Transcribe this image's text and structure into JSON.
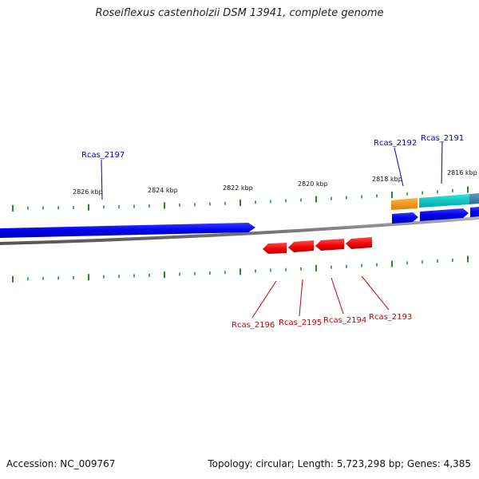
{
  "title": "Roseiflexus castenholzii DSM 13941, complete genome",
  "footer": {
    "accession": "Accession: NC_009767",
    "summary": "Topology: circular; Length: 5,723,298 bp; Genes: 4,385"
  },
  "colors": {
    "forward_label": "#0000cc",
    "reverse_label": "#cc0000",
    "tick": "#228822",
    "backbone": "#888888"
  },
  "scale_labels": [
    {
      "kbp": 2826,
      "label": "2826 kbp"
    },
    {
      "kbp": 2824,
      "label": "2824 kbp"
    },
    {
      "kbp": 2822,
      "label": "2822 kbp"
    },
    {
      "kbp": 2820,
      "label": "2820 kbp"
    },
    {
      "kbp": 2818,
      "label": "2818 kbp"
    },
    {
      "kbp": 2816,
      "label": "2816 kbp"
    }
  ],
  "forward_labels": [
    {
      "id": "Rcas_2197"
    },
    {
      "id": "Rcas_2192"
    },
    {
      "id": "Rcas_2191"
    }
  ],
  "reverse_labels": [
    {
      "id": "Rcas_2196"
    },
    {
      "id": "Rcas_2195"
    },
    {
      "id": "Rcas_2194"
    },
    {
      "id": "Rcas_2193"
    }
  ]
}
